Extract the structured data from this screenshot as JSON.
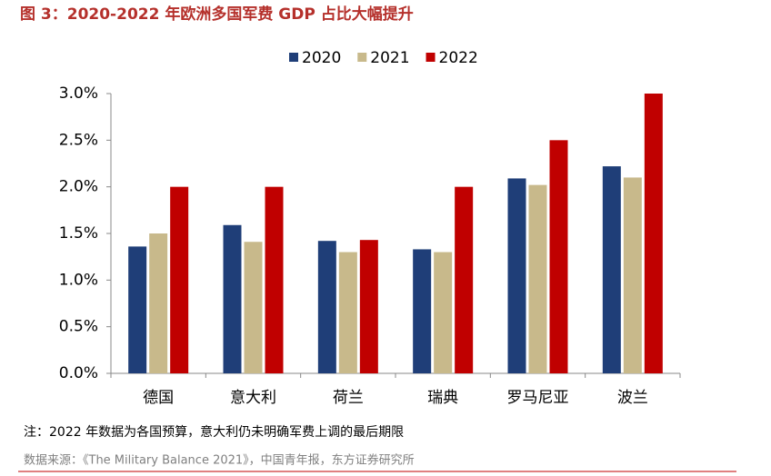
{
  "chart_data": {
    "type": "bar",
    "title": "图 3：2020-2022 年欧洲多国军费 GDP 占比大幅提升",
    "categories": [
      "德国",
      "意大利",
      "荷兰",
      "瑞典",
      "罗马尼亚",
      "波兰"
    ],
    "series": [
      {
        "name": "2020",
        "color": "#1f3e78",
        "values": [
          1.36,
          1.59,
          1.42,
          1.33,
          2.09,
          2.22
        ]
      },
      {
        "name": "2021",
        "color": "#c8b98b",
        "values": [
          1.5,
          1.41,
          1.3,
          1.3,
          2.02,
          2.1
        ]
      },
      {
        "name": "2022",
        "color": "#c00000",
        "values": [
          2.0,
          2.0,
          1.43,
          2.0,
          2.5,
          3.0
        ]
      }
    ],
    "ylim": [
      0,
      3.0
    ],
    "yticks": [
      {
        "value": 0,
        "label": "0.0%"
      },
      {
        "value": 0.5,
        "label": "0.5%"
      },
      {
        "value": 1.0,
        "label": "1.0%"
      },
      {
        "value": 1.5,
        "label": "1.5%"
      },
      {
        "value": 2.0,
        "label": "2.0%"
      },
      {
        "value": 2.5,
        "label": "2.5%"
      },
      {
        "value": 3.0,
        "label": "3.0%"
      }
    ],
    "legend": "top",
    "grid": false
  },
  "note": "注：2022 年数据为各国预算，意大利仍未明确军费上调的最后期限",
  "source": "数据来源：《The Military Balance 2021》，中国青年报，东方证券研究所"
}
